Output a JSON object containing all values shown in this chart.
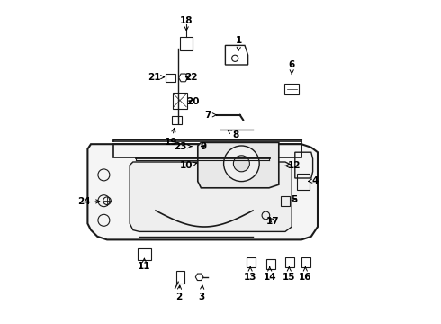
{
  "bg_color": "#ffffff",
  "line_color": "#1a1a1a",
  "label_color": "#000000",
  "fig_width": 4.9,
  "fig_height": 3.6,
  "dpi": 100,
  "label_positions": {
    "18": [
      0.395,
      0.935,
      0.395,
      0.895
    ],
    "21": [
      0.295,
      0.762,
      0.33,
      0.762
    ],
    "22": [
      0.408,
      0.762,
      0.382,
      0.762
    ],
    "20": [
      0.415,
      0.685,
      0.392,
      0.692
    ],
    "19": [
      0.348,
      0.56,
      0.36,
      0.615
    ],
    "1": [
      0.558,
      0.875,
      0.555,
      0.84
    ],
    "6": [
      0.72,
      0.8,
      0.72,
      0.762
    ],
    "7": [
      0.462,
      0.645,
      0.49,
      0.645
    ],
    "8": [
      0.548,
      0.582,
      0.52,
      0.6
    ],
    "23": [
      0.375,
      0.548,
      0.42,
      0.548
    ],
    "9": [
      0.448,
      0.548,
      0.44,
      0.548
    ],
    "10": [
      0.395,
      0.488,
      0.43,
      0.498
    ],
    "12": [
      0.728,
      0.488,
      0.698,
      0.488
    ],
    "4": [
      0.792,
      0.442,
      0.768,
      0.44
    ],
    "5": [
      0.728,
      0.382,
      0.712,
      0.382
    ],
    "24": [
      0.078,
      0.378,
      0.138,
      0.378
    ],
    "17": [
      0.662,
      0.318,
      0.645,
      0.334
    ],
    "11": [
      0.265,
      0.178,
      0.265,
      0.205
    ],
    "2": [
      0.372,
      0.082,
      0.375,
      0.13
    ],
    "3": [
      0.442,
      0.082,
      0.445,
      0.13
    ],
    "13": [
      0.592,
      0.145,
      0.592,
      0.178
    ],
    "14": [
      0.652,
      0.145,
      0.652,
      0.178
    ],
    "15": [
      0.712,
      0.145,
      0.712,
      0.178
    ],
    "16": [
      0.762,
      0.145,
      0.762,
      0.178
    ]
  }
}
